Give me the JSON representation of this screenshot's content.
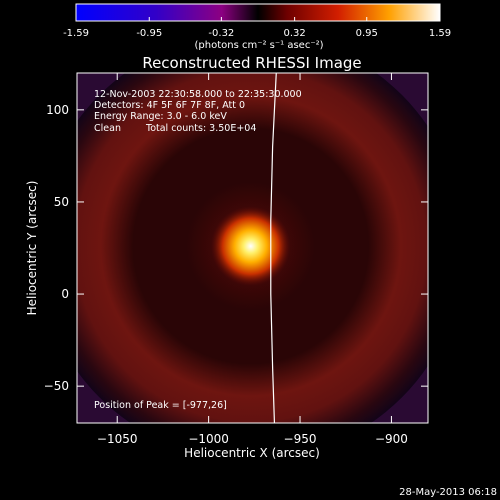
{
  "colorbar": {
    "ticks": [
      "-1.59",
      "-0.95",
      "-0.32",
      "0.32",
      "0.95",
      "1.59"
    ],
    "unit_label": "(photons cm⁻² s⁻¹ asec⁻²)",
    "range": [
      -1.59,
      1.59
    ],
    "colormap": "heat"
  },
  "title": "Reconstructed RHESSI Image",
  "annotations": {
    "time_range": "12-Nov-2003 22:30:58.000 to 22:35:30.000",
    "detectors": "Detectors: 4F 5F 6F 7F 8F, Att 0",
    "energy": "Energy Range: 3.0 - 6.0 keV",
    "method": "Clean",
    "counts": "Total counts: 3.50E+04",
    "peak": "Position of Peak = [-977,26]"
  },
  "footer": {
    "date": "28-May-2013 06:18"
  },
  "chart_data": {
    "type": "heatmap",
    "title": "Reconstructed RHESSI Image",
    "xlabel": "Heliocentric X (arcsec)",
    "ylabel": "Heliocentric Y (arcsec)",
    "xlim": [
      -1072,
      -880
    ],
    "ylim": [
      -70,
      120
    ],
    "xticks": [
      -1050,
      -1000,
      -950,
      -900
    ],
    "yticks": [
      -50,
      0,
      50,
      100
    ],
    "peak": {
      "x": -977,
      "y": 26,
      "value": 1.59
    },
    "ring": {
      "center_x": -977,
      "center_y": 26,
      "radius_arcsec": 78
    },
    "limb_curve": [
      [
        -963,
        120
      ],
      [
        -965,
        80
      ],
      [
        -966,
        40
      ],
      [
        -966,
        0
      ],
      [
        -965,
        -40
      ],
      [
        -964,
        -70
      ]
    ]
  }
}
